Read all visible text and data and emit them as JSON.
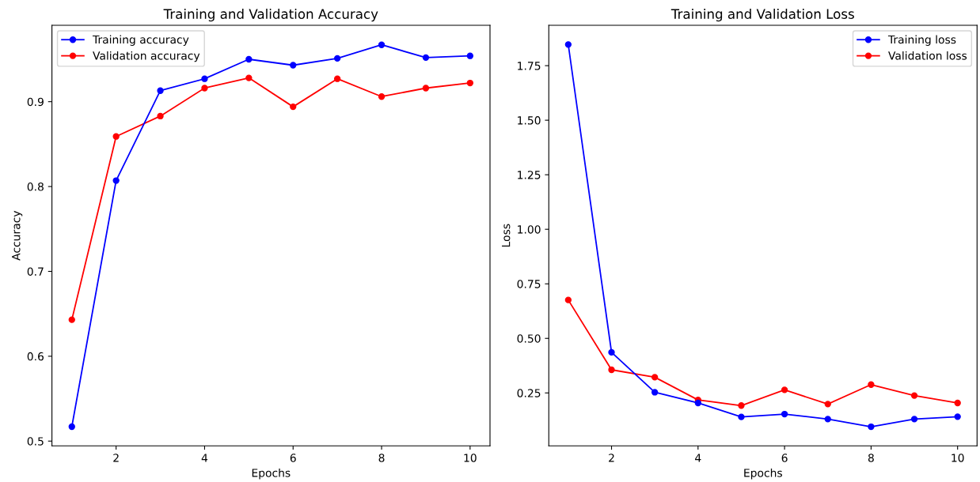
{
  "chart_data": [
    {
      "type": "line",
      "title": "Training and Validation Accuracy",
      "xlabel": "Epochs",
      "ylabel": "Accuracy",
      "x": [
        1,
        2,
        3,
        4,
        5,
        6,
        7,
        8,
        9,
        10
      ],
      "series": [
        {
          "name": "Training accuracy",
          "color": "#0000ff",
          "values": [
            0.517,
            0.807,
            0.913,
            0.927,
            0.95,
            0.943,
            0.951,
            0.967,
            0.952,
            0.954
          ]
        },
        {
          "name": "Validation accuracy",
          "color": "#ff0000",
          "values": [
            0.643,
            0.859,
            0.883,
            0.916,
            0.928,
            0.894,
            0.927,
            0.906,
            0.916,
            0.922
          ]
        }
      ],
      "xlim": [
        0.55,
        10.45
      ],
      "ylim": [
        0.4944,
        0.99
      ],
      "xticks": [
        2,
        4,
        6,
        8,
        10
      ],
      "yticks": [
        0.5,
        0.6,
        0.7,
        0.8,
        0.9
      ],
      "marker": "circle",
      "line_style": "solid",
      "legend": "top left",
      "grid": false
    },
    {
      "type": "line",
      "title": "Training and Validation Loss",
      "xlabel": "Epochs",
      "ylabel": "Loss",
      "x": [
        1,
        2,
        3,
        4,
        5,
        6,
        7,
        8,
        9,
        10
      ],
      "series": [
        {
          "name": "Training loss",
          "color": "#0000ff",
          "values": [
            1.847,
            0.436,
            0.253,
            0.204,
            0.14,
            0.153,
            0.13,
            0.095,
            0.13,
            0.141
          ]
        },
        {
          "name": "Validation loss",
          "color": "#ff0000",
          "values": [
            0.676,
            0.356,
            0.322,
            0.218,
            0.192,
            0.264,
            0.199,
            0.288,
            0.238,
            0.204
          ]
        }
      ],
      "xlim": [
        0.55,
        10.45
      ],
      "ylim": [
        0.0074,
        1.935
      ],
      "xticks": [
        2,
        4,
        6,
        8,
        10
      ],
      "yticks": [
        {
          "value": 0.25,
          "label": "0.25"
        },
        {
          "value": 0.5,
          "label": "0.50"
        },
        {
          "value": 0.75,
          "label": "0.75"
        },
        {
          "value": 1.0,
          "label": "1.00"
        },
        {
          "value": 1.25,
          "label": "1.25"
        },
        {
          "value": 1.5,
          "label": "1.50"
        },
        {
          "value": 1.75,
          "label": "1.75"
        }
      ],
      "marker": "circle",
      "line_style": "solid",
      "legend": "top right",
      "grid": false
    }
  ]
}
